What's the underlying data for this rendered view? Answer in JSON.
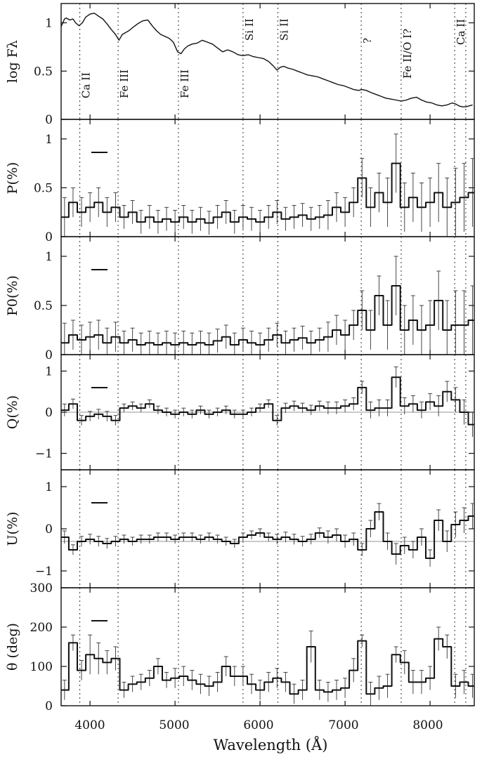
{
  "chart_data": {
    "type": "line",
    "xlabel": "Wavelength (Å)",
    "xlim": [
      3660,
      8520
    ],
    "xticks": [
      4000,
      5000,
      6000,
      7000,
      8000
    ],
    "xtick_labels": [
      "4000",
      "5000",
      "6000",
      "7000",
      "8000"
    ],
    "line_features": [
      {
        "wavelength": 3880,
        "label": "Ca II"
      },
      {
        "wavelength": 4330,
        "label": "Fe III"
      },
      {
        "wavelength": 5040,
        "label": "Fe III"
      },
      {
        "wavelength": 5800,
        "label": "Si II"
      },
      {
        "wavelength": 6210,
        "label": "Si II"
      },
      {
        "wavelength": 7190,
        "label": "?"
      },
      {
        "wavelength": 7660,
        "label": "Fe II/O I?"
      },
      {
        "wavelength": 8290,
        "label": "Ca II"
      },
      {
        "wavelength": 8420,
        "label": ""
      }
    ],
    "panels": [
      {
        "key": "flux",
        "ylabel": "log Fλ",
        "ylim": [
          0,
          1.2
        ],
        "yticks": [
          0,
          0.5,
          1
        ],
        "ytick_labels": [
          "0",
          "0.5",
          "1"
        ],
        "scale_bar": false,
        "style": "line",
        "x": [
          3660,
          3700,
          3720,
          3760,
          3800,
          3830,
          3870,
          3910,
          3950,
          4000,
          4050,
          4100,
          4150,
          4200,
          4250,
          4300,
          4340,
          4380,
          4420,
          4460,
          4500,
          4560,
          4620,
          4680,
          4730,
          4780,
          4830,
          4880,
          4930,
          4980,
          5030,
          5070,
          5110,
          5150,
          5200,
          5260,
          5320,
          5380,
          5440,
          5500,
          5560,
          5620,
          5680,
          5740,
          5800,
          5860,
          5920,
          5980,
          6040,
          6100,
          6160,
          6200,
          6240,
          6280,
          6330,
          6380,
          6440,
          6500,
          6560,
          6620,
          6680,
          6740,
          6800,
          6860,
          6920,
          6980,
          7040,
          7100,
          7160,
          7200,
          7250,
          7300,
          7360,
          7420,
          7480,
          7540,
          7600,
          7660,
          7720,
          7780,
          7840,
          7900,
          7960,
          8020,
          8080,
          8140,
          8200,
          8260,
          8300,
          8340,
          8380,
          8420,
          8460,
          8500
        ],
        "y": [
          0.96,
          1.04,
          1.05,
          1.03,
          1.04,
          1.0,
          0.97,
          1.0,
          1.06,
          1.09,
          1.1,
          1.07,
          1.04,
          0.99,
          0.93,
          0.88,
          0.82,
          0.88,
          0.9,
          0.92,
          0.95,
          0.99,
          1.02,
          1.03,
          0.97,
          0.92,
          0.88,
          0.86,
          0.84,
          0.8,
          0.7,
          0.68,
          0.73,
          0.76,
          0.78,
          0.79,
          0.82,
          0.8,
          0.78,
          0.74,
          0.7,
          0.72,
          0.7,
          0.67,
          0.66,
          0.67,
          0.65,
          0.64,
          0.63,
          0.6,
          0.55,
          0.51,
          0.54,
          0.55,
          0.53,
          0.52,
          0.5,
          0.48,
          0.46,
          0.45,
          0.44,
          0.42,
          0.4,
          0.38,
          0.36,
          0.35,
          0.33,
          0.31,
          0.3,
          0.31,
          0.3,
          0.28,
          0.26,
          0.24,
          0.22,
          0.21,
          0.2,
          0.19,
          0.2,
          0.22,
          0.23,
          0.2,
          0.18,
          0.17,
          0.15,
          0.14,
          0.15,
          0.17,
          0.16,
          0.14,
          0.13,
          0.13,
          0.14,
          0.15
        ]
      },
      {
        "key": "P",
        "ylabel": "P(%)",
        "ylim": [
          0,
          1.2
        ],
        "yticks": [
          0,
          0.5,
          1
        ],
        "ytick_labels": [
          "0",
          "0.5",
          "1"
        ],
        "scale_bar": true,
        "style": "step",
        "x": [
          3700,
          3800,
          3900,
          4000,
          4100,
          4200,
          4300,
          4400,
          4500,
          4600,
          4700,
          4800,
          4900,
          5000,
          5100,
          5200,
          5300,
          5400,
          5500,
          5600,
          5700,
          5800,
          5900,
          6000,
          6100,
          6200,
          6300,
          6400,
          6500,
          6600,
          6700,
          6800,
          6900,
          7000,
          7100,
          7200,
          7300,
          7400,
          7500,
          7600,
          7700,
          7800,
          7900,
          8000,
          8100,
          8200,
          8300,
          8400,
          8500
        ],
        "y": [
          0.2,
          0.35,
          0.25,
          0.3,
          0.35,
          0.25,
          0.3,
          0.2,
          0.25,
          0.15,
          0.2,
          0.15,
          0.18,
          0.15,
          0.2,
          0.15,
          0.18,
          0.14,
          0.2,
          0.25,
          0.15,
          0.2,
          0.18,
          0.15,
          0.2,
          0.25,
          0.18,
          0.2,
          0.22,
          0.18,
          0.2,
          0.22,
          0.3,
          0.25,
          0.35,
          0.6,
          0.3,
          0.45,
          0.35,
          0.75,
          0.3,
          0.4,
          0.3,
          0.35,
          0.45,
          0.3,
          0.35,
          0.4,
          0.45
        ],
        "err": [
          0.2,
          0.15,
          0.15,
          0.15,
          0.15,
          0.15,
          0.15,
          0.12,
          0.12,
          0.12,
          0.12,
          0.12,
          0.12,
          0.12,
          0.12,
          0.12,
          0.12,
          0.12,
          0.12,
          0.12,
          0.12,
          0.12,
          0.12,
          0.12,
          0.12,
          0.12,
          0.12,
          0.12,
          0.12,
          0.12,
          0.12,
          0.15,
          0.15,
          0.15,
          0.15,
          0.2,
          0.2,
          0.2,
          0.25,
          0.3,
          0.25,
          0.25,
          0.25,
          0.25,
          0.3,
          0.3,
          0.35,
          0.35,
          0.35
        ]
      },
      {
        "key": "P0",
        "ylabel": "P0(%)",
        "ylim": [
          0,
          1.2
        ],
        "yticks": [
          0,
          0.5,
          1
        ],
        "ytick_labels": [
          "0",
          "0.5",
          "1"
        ],
        "scale_bar": true,
        "style": "step",
        "x": [
          3700,
          3800,
          3900,
          4000,
          4100,
          4200,
          4300,
          4400,
          4500,
          4600,
          4700,
          4800,
          4900,
          5000,
          5100,
          5200,
          5300,
          5400,
          5500,
          5600,
          5700,
          5800,
          5900,
          6000,
          6100,
          6200,
          6300,
          6400,
          6500,
          6600,
          6700,
          6800,
          6900,
          7000,
          7100,
          7200,
          7300,
          7400,
          7500,
          7600,
          7700,
          7800,
          7900,
          8000,
          8100,
          8200,
          8300,
          8400,
          8500
        ],
        "y": [
          0.12,
          0.2,
          0.15,
          0.18,
          0.2,
          0.12,
          0.18,
          0.12,
          0.15,
          0.1,
          0.12,
          0.1,
          0.12,
          0.1,
          0.12,
          0.1,
          0.12,
          0.1,
          0.14,
          0.18,
          0.1,
          0.15,
          0.12,
          0.1,
          0.15,
          0.2,
          0.12,
          0.15,
          0.17,
          0.12,
          0.15,
          0.18,
          0.25,
          0.2,
          0.3,
          0.45,
          0.25,
          0.6,
          0.3,
          0.7,
          0.25,
          0.35,
          0.25,
          0.3,
          0.55,
          0.25,
          0.3,
          0.3,
          0.35
        ],
        "err": [
          0.2,
          0.15,
          0.15,
          0.15,
          0.15,
          0.15,
          0.15,
          0.12,
          0.12,
          0.12,
          0.12,
          0.12,
          0.12,
          0.12,
          0.12,
          0.12,
          0.12,
          0.12,
          0.12,
          0.12,
          0.12,
          0.12,
          0.12,
          0.12,
          0.12,
          0.12,
          0.12,
          0.12,
          0.12,
          0.12,
          0.12,
          0.15,
          0.15,
          0.15,
          0.15,
          0.2,
          0.2,
          0.2,
          0.25,
          0.3,
          0.25,
          0.25,
          0.25,
          0.25,
          0.3,
          0.3,
          0.35,
          0.35,
          0.35
        ]
      },
      {
        "key": "Q",
        "ylabel": "Q(%)",
        "ylim": [
          -1.4,
          1.4
        ],
        "yticks": [
          -1,
          0,
          1
        ],
        "ytick_labels": [
          "−1",
          "0",
          "1"
        ],
        "scale_bar": true,
        "zero_line": 0,
        "style": "step",
        "x": [
          3700,
          3800,
          3900,
          4000,
          4100,
          4200,
          4300,
          4400,
          4500,
          4600,
          4700,
          4800,
          4900,
          5000,
          5100,
          5200,
          5300,
          5400,
          5500,
          5600,
          5700,
          5800,
          5900,
          6000,
          6100,
          6200,
          6300,
          6400,
          6500,
          6600,
          6700,
          6800,
          6900,
          7000,
          7100,
          7200,
          7300,
          7400,
          7500,
          7600,
          7700,
          7800,
          7900,
          8000,
          8100,
          8200,
          8300,
          8400,
          8500
        ],
        "y": [
          0.05,
          0.2,
          -0.2,
          -0.1,
          -0.05,
          -0.1,
          -0.2,
          0.1,
          0.15,
          0.1,
          0.2,
          0.05,
          0.0,
          -0.05,
          0.0,
          -0.05,
          0.05,
          -0.05,
          0.0,
          0.05,
          -0.05,
          -0.05,
          0.0,
          0.1,
          0.2,
          -0.2,
          0.1,
          0.15,
          0.1,
          0.05,
          0.15,
          0.1,
          0.1,
          0.15,
          0.2,
          0.6,
          0.05,
          0.1,
          0.1,
          0.85,
          0.15,
          0.2,
          0.05,
          0.25,
          0.15,
          0.5,
          0.3,
          0.0,
          -0.3
        ],
        "err": [
          0.15,
          0.12,
          0.12,
          0.12,
          0.12,
          0.12,
          0.12,
          0.1,
          0.1,
          0.1,
          0.1,
          0.1,
          0.1,
          0.1,
          0.1,
          0.1,
          0.1,
          0.1,
          0.1,
          0.1,
          0.1,
          0.1,
          0.1,
          0.1,
          0.1,
          0.12,
          0.12,
          0.12,
          0.12,
          0.12,
          0.12,
          0.15,
          0.15,
          0.15,
          0.15,
          0.15,
          0.2,
          0.2,
          0.2,
          0.25,
          0.2,
          0.2,
          0.2,
          0.2,
          0.25,
          0.25,
          0.3,
          0.3,
          0.3
        ]
      },
      {
        "key": "U",
        "ylabel": "U(%)",
        "ylim": [
          -1.4,
          1.4
        ],
        "yticks": [
          -1,
          0,
          1
        ],
        "ytick_labels": [
          "−1",
          "0",
          "1"
        ],
        "scale_bar": true,
        "zero_line": -0.3,
        "style": "step",
        "x": [
          3700,
          3800,
          3900,
          4000,
          4100,
          4200,
          4300,
          4400,
          4500,
          4600,
          4700,
          4800,
          4900,
          5000,
          5100,
          5200,
          5300,
          5400,
          5500,
          5600,
          5700,
          5800,
          5900,
          6000,
          6100,
          6200,
          6300,
          6400,
          6500,
          6600,
          6700,
          6800,
          6900,
          7000,
          7100,
          7200,
          7300,
          7400,
          7500,
          7600,
          7700,
          7800,
          7900,
          8000,
          8100,
          8200,
          8300,
          8400,
          8500
        ],
        "y": [
          -0.2,
          -0.5,
          -0.3,
          -0.25,
          -0.3,
          -0.35,
          -0.3,
          -0.25,
          -0.3,
          -0.25,
          -0.25,
          -0.2,
          -0.2,
          -0.25,
          -0.2,
          -0.2,
          -0.25,
          -0.2,
          -0.25,
          -0.3,
          -0.35,
          -0.2,
          -0.15,
          -0.1,
          -0.2,
          -0.25,
          -0.2,
          -0.25,
          -0.3,
          -0.25,
          -0.1,
          -0.2,
          -0.15,
          -0.3,
          -0.25,
          -0.5,
          0.0,
          0.4,
          -0.3,
          -0.6,
          -0.4,
          -0.5,
          -0.2,
          -0.7,
          0.2,
          -0.3,
          0.1,
          0.2,
          0.3
        ],
        "err": [
          0.15,
          0.12,
          0.12,
          0.12,
          0.12,
          0.12,
          0.12,
          0.1,
          0.1,
          0.1,
          0.1,
          0.1,
          0.1,
          0.1,
          0.1,
          0.1,
          0.1,
          0.1,
          0.1,
          0.1,
          0.1,
          0.1,
          0.1,
          0.1,
          0.1,
          0.12,
          0.12,
          0.12,
          0.12,
          0.12,
          0.12,
          0.15,
          0.15,
          0.15,
          0.15,
          0.15,
          0.2,
          0.2,
          0.2,
          0.25,
          0.2,
          0.2,
          0.2,
          0.2,
          0.25,
          0.25,
          0.3,
          0.3,
          0.3
        ]
      },
      {
        "key": "theta",
        "ylabel": "θ (deg)",
        "ylim": [
          0,
          300
        ],
        "yticks": [
          0,
          100,
          200,
          300
        ],
        "ytick_labels": [
          "0",
          "100",
          "200",
          "300"
        ],
        "scale_bar": true,
        "style": "step",
        "x": [
          3700,
          3800,
          3900,
          4000,
          4100,
          4200,
          4300,
          4400,
          4500,
          4600,
          4700,
          4800,
          4900,
          5000,
          5100,
          5200,
          5300,
          5400,
          5500,
          5600,
          5700,
          5800,
          5900,
          6000,
          6100,
          6200,
          6300,
          6400,
          6500,
          6600,
          6700,
          6800,
          6900,
          7000,
          7100,
          7200,
          7300,
          7400,
          7500,
          7600,
          7700,
          7800,
          7900,
          8000,
          8100,
          8200,
          8300,
          8400,
          8500
        ],
        "y": [
          40,
          160,
          90,
          130,
          120,
          110,
          120,
          40,
          55,
          60,
          70,
          100,
          65,
          70,
          75,
          65,
          55,
          50,
          60,
          100,
          75,
          75,
          55,
          40,
          60,
          70,
          60,
          30,
          40,
          150,
          40,
          35,
          40,
          45,
          90,
          165,
          30,
          45,
          50,
          130,
          110,
          60,
          60,
          70,
          170,
          150,
          50,
          60,
          50
        ],
        "err": [
          25,
          20,
          25,
          50,
          40,
          30,
          30,
          20,
          20,
          20,
          20,
          20,
          20,
          25,
          25,
          25,
          25,
          25,
          25,
          25,
          25,
          25,
          25,
          25,
          25,
          25,
          25,
          25,
          25,
          40,
          25,
          25,
          25,
          25,
          30,
          15,
          30,
          30,
          30,
          20,
          30,
          30,
          30,
          30,
          30,
          30,
          30,
          30,
          30
        ]
      }
    ]
  }
}
